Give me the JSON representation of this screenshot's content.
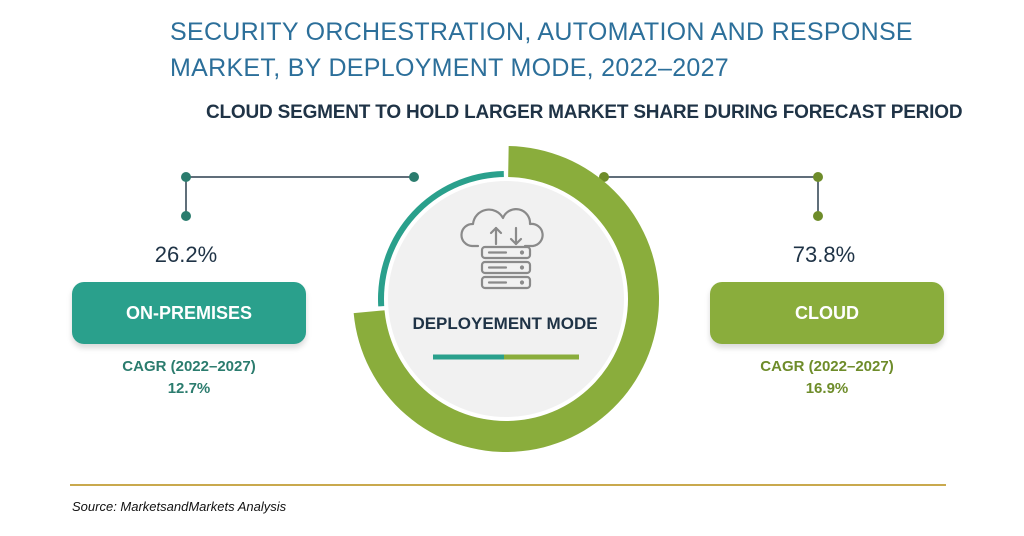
{
  "title_line1": "SECURITY ORCHESTRATION, AUTOMATION AND RESPONSE",
  "title_line2": "MARKET, BY DEPLOYMENT MODE, 2022–2027",
  "subtitle": "CLOUD SEGMENT TO HOLD LARGER MARKET SHARE DURING FORECAST PERIOD",
  "center_label": "DEPLOYEMENT MODE",
  "center_icon": "cloud-server-icon",
  "source": "Source: MarketsandMarkets Analysis",
  "colors": {
    "on_premises": "#2aa08c",
    "cloud": "#8aad3c",
    "on_premises_text": "#2b7c6e",
    "cloud_text": "#6e8c2a",
    "title": "#2c6f9a"
  },
  "segments": {
    "on_premises": {
      "share": "26.2%",
      "label": "ON-PREMISES",
      "cagr_label": "CAGR (2022–2027)",
      "cagr_value": "12.7%"
    },
    "cloud": {
      "share": "73.8%",
      "label": "CLOUD",
      "cagr_label": "CAGR (2022–2027)",
      "cagr_value": "16.9%"
    }
  },
  "chart_data": {
    "type": "pie",
    "categories": [
      "ON-PREMISES",
      "CLOUD"
    ],
    "values": [
      26.2,
      73.8
    ],
    "title": "SECURITY ORCHESTRATION, AUTOMATION AND RESPONSE MARKET, BY DEPLOYMENT MODE, 2022–2027",
    "subtitle": "CLOUD SEGMENT TO HOLD LARGER MARKET SHARE DURING FORECAST PERIOD",
    "cagr": [
      12.7,
      16.9
    ],
    "donut": true
  }
}
